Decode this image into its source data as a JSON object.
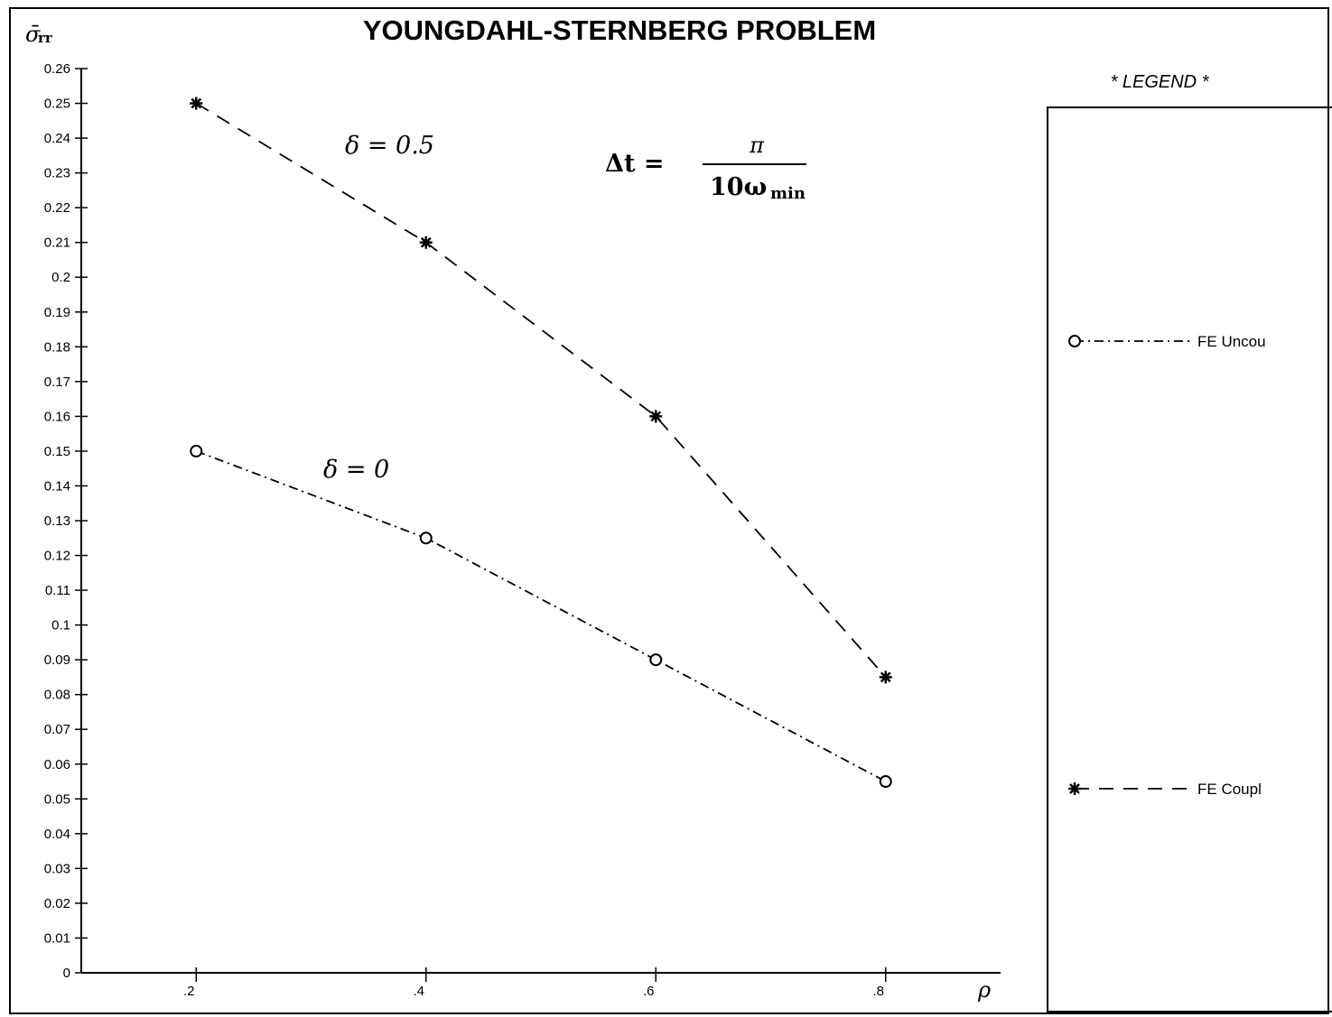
{
  "chart_data": {
    "type": "line",
    "title": "YOUNGDAHL-STERNBERG PROBLEM",
    "ylabel_symbol": "σ̄",
    "ylabel_subscript": "rr",
    "xlabel": "ρ",
    "x": [
      0.2,
      0.4,
      0.6,
      0.8
    ],
    "x_tick_labels": [
      ".2",
      ".4",
      ".6",
      ".8"
    ],
    "xlim": [
      0.1,
      0.9
    ],
    "ylim": [
      0,
      0.26
    ],
    "y_tick_labels": [
      "0",
      "0.01",
      "0.02",
      "0.03",
      "0.04",
      "0.05",
      "0.06",
      "0.07",
      "0.08",
      "0.09",
      "0.1",
      "0.11",
      "0.12",
      "0.13",
      "0.14",
      "0.15",
      "0.16",
      "0.17",
      "0.18",
      "0.19",
      "0.2",
      "0.21",
      "0.22",
      "0.23",
      "0.24",
      "0.25",
      "0.26"
    ],
    "grid": false,
    "legend_position": "right",
    "series": [
      {
        "name": "FE Uncou",
        "values": [
          0.15,
          0.125,
          0.09,
          0.055
        ],
        "marker": "circle",
        "line": "dash-dot",
        "color": "#000000"
      },
      {
        "name": "FE Coupl",
        "values": [
          0.25,
          0.21,
          0.16,
          0.085
        ],
        "marker": "asterisk",
        "line": "dashed",
        "color": "#000000"
      }
    ],
    "annotations": {
      "delta_half": "δ = 0.5",
      "delta_zero": "δ = 0",
      "dt_lhs": "Δt =",
      "dt_numerator": "π",
      "dt_denominator": "10ω",
      "dt_denominator_sub": "min"
    },
    "legend_title": "* LEGEND *"
  }
}
